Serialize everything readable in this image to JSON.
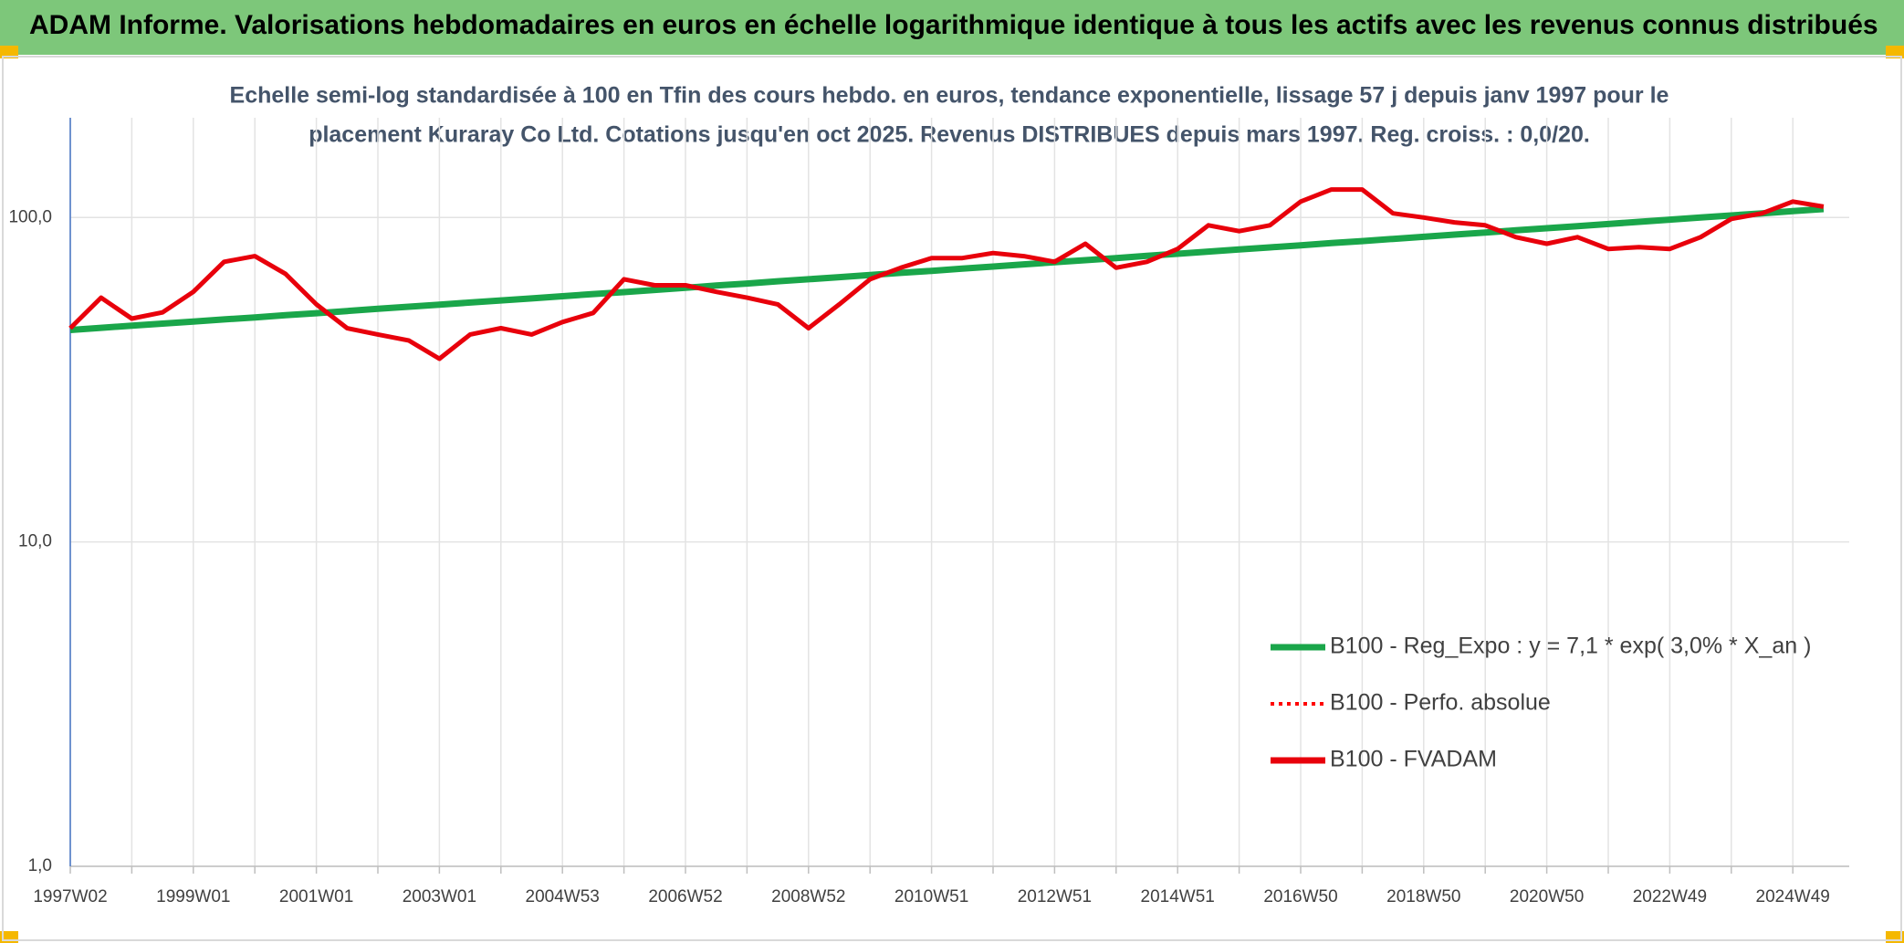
{
  "chart_data": {
    "type": "line",
    "title": "ADAM Informe. Valorisations hebdomadaires en euros en échelle logarithmique identique à tous les actifs avec les revenus connus distribués",
    "subtitle": [
      "Echelle semi-log standardisée à 100 en Tfin des cours hebdo. en euros, tendance exponentielle, lissage 57 j depuis janv 1997 pour le",
      "placement Kuraray Co Ltd. Cotations jusqu'en oct 2025. Revenus DISTRIBUES depuis mars 1997. Reg. croiss. : 0,0/20."
    ],
    "categories": [
      "1997W02",
      null,
      null,
      null,
      "1999W01",
      null,
      null,
      null,
      "2001W01",
      null,
      null,
      null,
      "2003W01",
      null,
      null,
      null,
      "2004W53",
      null,
      null,
      null,
      "2006W52",
      null,
      null,
      null,
      "2008W52",
      null,
      null,
      null,
      "2010W51",
      null,
      null,
      null,
      "2012W51",
      null,
      null,
      null,
      "2014W51",
      null,
      null,
      null,
      "2016W50",
      null,
      null,
      null,
      "2018W50",
      null,
      null,
      null,
      "2020W50",
      null,
      null,
      null,
      "2022W49",
      null,
      null,
      null,
      "2024W49",
      null
    ],
    "series": [
      {
        "name": "B100 - Reg_Expo : y = 7,1 * exp( 3,0% *  X_an )",
        "color": "#1aa64a",
        "line_style": "solid",
        "values": [
          45.0,
          45.7,
          46.4,
          47.1,
          47.8,
          48.5,
          49.2,
          50.0,
          50.7,
          51.5,
          52.3,
          53.1,
          53.9,
          54.7,
          55.5,
          56.3,
          57.2,
          58.1,
          58.9,
          59.8,
          60.7,
          61.7,
          62.6,
          63.6,
          64.5,
          65.5,
          66.5,
          67.5,
          68.5,
          69.6,
          70.6,
          71.7,
          72.8,
          73.9,
          75.0,
          76.2,
          77.3,
          78.5,
          79.7,
          80.9,
          82.1,
          83.4,
          84.6,
          85.9,
          87.2,
          88.6,
          89.9,
          91.3,
          92.7,
          94.1,
          95.5,
          97.0,
          98.5,
          100.0,
          101.5,
          103.0,
          104.6,
          106.2
        ]
      },
      {
        "name": "B100 - Perfo. absolue",
        "color": "#ff0000",
        "line_style": "dotted",
        "values": [
          45.6,
          56.6,
          48.8,
          51,
          59,
          73,
          76,
          67,
          54,
          45.6,
          43.6,
          41.8,
          36.7,
          43.6,
          45.6,
          43.6,
          47.6,
          50.8,
          64.5,
          61.8,
          61.8,
          59,
          56.6,
          54,
          45.6,
          54,
          64.5,
          70,
          75,
          75,
          77.7,
          76,
          73,
          83,
          70,
          73,
          80,
          94.6,
          90.8,
          94.6,
          112,
          122,
          122,
          103,
          100,
          96.6,
          94.6,
          87,
          83,
          87,
          80,
          81,
          80,
          87,
          99,
          103,
          112,
          108
        ]
      },
      {
        "name": "B100 - FVADAM",
        "color": "#e8000b",
        "line_style": "solid",
        "values": [
          45.6,
          56.6,
          48.8,
          51,
          59,
          73,
          76,
          67,
          54,
          45.6,
          43.6,
          41.8,
          36.7,
          43.6,
          45.6,
          43.6,
          47.6,
          50.8,
          64.5,
          61.8,
          61.8,
          59,
          56.6,
          54,
          45.6,
          54,
          64.5,
          70,
          75,
          75,
          77.7,
          76,
          73,
          83,
          70,
          73,
          80,
          94.6,
          90.8,
          94.6,
          112,
          122,
          122,
          103,
          100,
          96.6,
          94.6,
          87,
          83,
          87,
          80,
          81,
          80,
          87,
          99,
          103,
          112,
          108
        ]
      }
    ],
    "log_scale": true,
    "ylim": [
      1,
      203
    ],
    "yticks": [
      {
        "value": 1,
        "label": "1,0"
      },
      {
        "value": 10,
        "label": "10,0"
      },
      {
        "value": 100,
        "label": "100,0"
      }
    ],
    "grid": true,
    "legend": "lower right"
  }
}
